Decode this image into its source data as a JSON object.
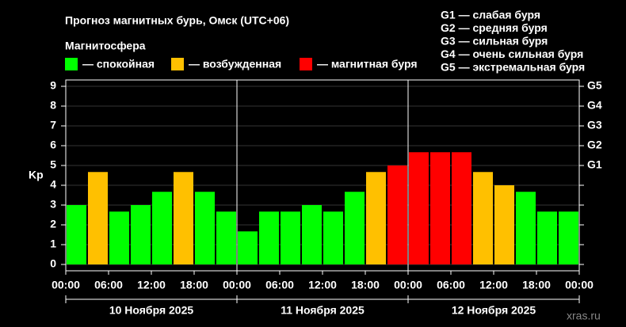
{
  "chart_data": {
    "type": "bar",
    "title": "Прогноз магнитных бурь, Омск (UTC+06)",
    "subtitle": "Магнитосфера",
    "legend": [
      {
        "name": "— спокойная",
        "color": "#00ff00"
      },
      {
        "name": "— возбужденная",
        "color": "#ffc000"
      },
      {
        "name": "— магнитная буря",
        "color": "#ff0000"
      }
    ],
    "g_scale": [
      "G1 — слабая буря",
      "G2 — средняя буря",
      "G3 — сильная буря",
      "G4 — очень сильная буря",
      "G5 — экстремальная буря"
    ],
    "y_label": "Kp",
    "x": [
      0,
      3,
      6,
      9,
      12,
      15,
      18,
      21,
      24,
      27,
      30,
      33,
      36,
      39,
      42,
      45,
      48,
      51,
      54,
      57,
      60,
      63,
      66,
      69
    ],
    "values": [
      3,
      4.67,
      2.67,
      3,
      3.67,
      4.67,
      3.67,
      2.67,
      1.67,
      2.67,
      2.67,
      3,
      2.67,
      3.67,
      4.67,
      5,
      5.67,
      5.67,
      5.67,
      4.67,
      4,
      3.67,
      2.67,
      2.67
    ],
    "colors": [
      "#00ff00",
      "#ffc000",
      "#00ff00",
      "#00ff00",
      "#00ff00",
      "#ffc000",
      "#00ff00",
      "#00ff00",
      "#00ff00",
      "#00ff00",
      "#00ff00",
      "#00ff00",
      "#00ff00",
      "#00ff00",
      "#ffc000",
      "#ff0000",
      "#ff0000",
      "#ff0000",
      "#ff0000",
      "#ffc000",
      "#ffc000",
      "#00ff00",
      "#00ff00",
      "#00ff00"
    ],
    "xlim": [
      0,
      72
    ],
    "xticks": [
      {
        "value": 0,
        "label": "00:00"
      },
      {
        "value": 6,
        "label": "06:00"
      },
      {
        "value": 12,
        "label": "12:00"
      },
      {
        "value": 18,
        "label": "18:00"
      },
      {
        "value": 24,
        "label": "00:00"
      },
      {
        "value": 30,
        "label": "06:00"
      },
      {
        "value": 36,
        "label": "12:00"
      },
      {
        "value": 42,
        "label": "18:00"
      },
      {
        "value": 48,
        "label": "00:00"
      },
      {
        "value": 54,
        "label": "06:00"
      },
      {
        "value": 60,
        "label": "12:00"
      },
      {
        "value": 66,
        "label": "18:00"
      },
      {
        "value": 72,
        "label": "00:00"
      }
    ],
    "ylim": [
      0,
      9
    ],
    "yticks": [
      0,
      1,
      2,
      3,
      4,
      5,
      6,
      7,
      8,
      9
    ],
    "y2lim": [
      0,
      9
    ],
    "y2ticks": [
      {
        "value": 5,
        "label": "G1"
      },
      {
        "value": 6,
        "label": "G2"
      },
      {
        "value": 7,
        "label": "G3"
      },
      {
        "value": 8,
        "label": "G4"
      },
      {
        "value": 9,
        "label": "G5"
      }
    ],
    "days": [
      "10 Ноября 2025",
      "11 Ноября 2025",
      "12 Ноября 2025"
    ],
    "source": "xras.ru"
  }
}
